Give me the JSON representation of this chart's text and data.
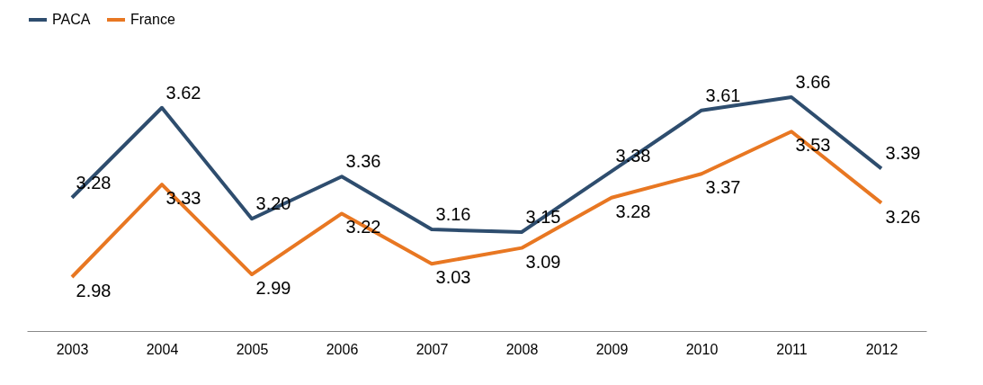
{
  "chart_data": {
    "type": "line",
    "categories": [
      "2003",
      "2004",
      "2005",
      "2006",
      "2007",
      "2008",
      "2009",
      "2010",
      "2011",
      "2012"
    ],
    "series": [
      {
        "name": "PACA",
        "color": "#2e4d6e",
        "values": [
          3.28,
          3.62,
          3.2,
          3.36,
          3.16,
          3.15,
          3.38,
          3.61,
          3.66,
          3.39
        ],
        "value_labels": [
          "3.28",
          "3.62",
          "3.20",
          "3.36",
          "3.16",
          "3.15",
          "3.38",
          "3.61",
          "3.66",
          "3.39"
        ]
      },
      {
        "name": "France",
        "color": "#e87722",
        "values": [
          2.98,
          3.33,
          2.99,
          3.22,
          3.03,
          3.09,
          3.28,
          3.37,
          3.53,
          3.26
        ],
        "value_labels": [
          "2.98",
          "3.33",
          "2.99",
          "3.22",
          "3.03",
          "3.09",
          "3.28",
          "3.37",
          "3.53",
          "3.26"
        ]
      }
    ],
    "tick_labels": "x",
    "legend": "top",
    "grid": false,
    "marker": "none",
    "line_style": "solid"
  }
}
